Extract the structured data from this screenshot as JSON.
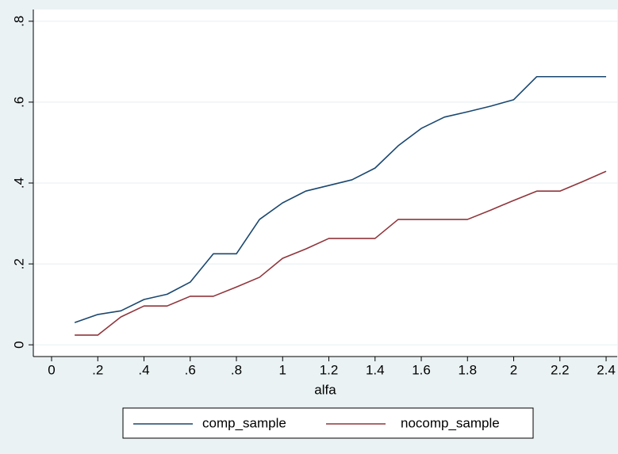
{
  "chart_data": {
    "type": "line",
    "xlabel": "alfa",
    "x": [
      0.1,
      0.2,
      0.3,
      0.4,
      0.5,
      0.6,
      0.7,
      0.8,
      0.9,
      1.0,
      1.1,
      1.2,
      1.3,
      1.4,
      1.5,
      1.6,
      1.7,
      1.8,
      1.9,
      2.0,
      2.1,
      2.2,
      2.3,
      2.4
    ],
    "series": [
      {
        "name": "comp_sample",
        "color": "#1a476f",
        "values": [
          0.055,
          0.075,
          0.084,
          0.112,
          0.125,
          0.155,
          0.225,
          0.225,
          0.31,
          0.351,
          0.38,
          0.394,
          0.408,
          0.437,
          0.492,
          0.535,
          0.563,
          0.576,
          0.59,
          0.606,
          0.663,
          0.663,
          0.663,
          0.663
        ]
      },
      {
        "name": "nocomp_sample",
        "color": "#90353b",
        "values": [
          0.024,
          0.024,
          0.069,
          0.096,
          0.096,
          0.12,
          0.12,
          0.143,
          0.167,
          0.214,
          0.237,
          0.263,
          0.263,
          0.263,
          0.31,
          0.31,
          0.31,
          0.31,
          0.333,
          0.357,
          0.38,
          0.38,
          0.404,
          0.429
        ]
      }
    ],
    "xlim": [
      -0.079,
      2.448
    ],
    "ylim": [
      -0.029,
      0.829
    ],
    "xticks": [
      0,
      {
        "value": 0.2,
        "label": ".2"
      },
      {
        "value": 0.4,
        "label": ".4"
      },
      {
        "value": 0.6,
        "label": ".6"
      },
      {
        "value": 0.8,
        "label": ".8"
      },
      1,
      1.2,
      1.4,
      1.6,
      1.8,
      2,
      2.2,
      2.4
    ],
    "yticks": [
      0,
      {
        "value": 0.2,
        "label": ".2"
      },
      {
        "value": 0.4,
        "label": ".4"
      },
      {
        "value": 0.6,
        "label": ".6"
      },
      {
        "value": 0.8,
        "label": ".8"
      }
    ],
    "grid": true,
    "legend": "bottom"
  }
}
